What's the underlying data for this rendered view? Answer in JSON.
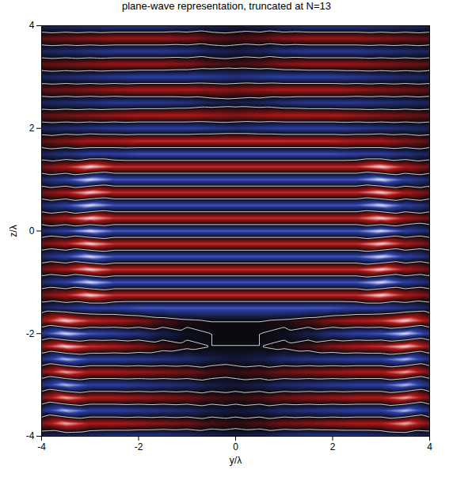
{
  "chart_data": {
    "type": "heatmap",
    "title": "plane-wave representation, truncated at N=13",
    "x_label": "y/λ",
    "y_label": "z/λ",
    "xlim": [
      -4,
      4
    ],
    "ylim": [
      -4,
      4
    ],
    "xticks": [
      -4,
      -2,
      0,
      2,
      4
    ],
    "yticks": [
      -4,
      -2,
      0,
      2,
      4
    ],
    "x": [
      -4,
      -3.5,
      -3,
      -2.5,
      -2,
      -1.5,
      -1,
      -0.5,
      0,
      0.5,
      1,
      1.5,
      2,
      2.5,
      3,
      3.5,
      4
    ],
    "y": [
      4,
      3.75,
      3.5,
      3.25,
      3,
      2.75,
      2.5,
      2.25,
      2,
      1.75,
      1.5,
      1.25,
      1,
      0.75,
      0.5,
      0.25,
      0,
      -0.25,
      -0.5,
      -0.75,
      -1,
      -1.25,
      -1.5,
      -1.75,
      -2,
      -2.25,
      -2.5,
      -2.75,
      -3,
      -3.25,
      -3.5,
      -3.75,
      -4
    ],
    "values": [
      [
        -0.4,
        -0.5,
        -0.6,
        -0.7,
        -0.7,
        -0.7,
        -0.6,
        -0.4,
        -0.3,
        -0.4,
        -0.6,
        -0.7,
        -0.7,
        -0.7,
        -0.6,
        -0.5,
        -0.4
      ],
      [
        0.4,
        0.5,
        0.6,
        0.7,
        0.7,
        0.7,
        0.6,
        0.4,
        0.3,
        0.4,
        0.6,
        0.7,
        0.7,
        0.7,
        0.6,
        0.5,
        0.4
      ],
      [
        -0.4,
        -0.5,
        -0.6,
        -0.7,
        -0.7,
        -0.7,
        -0.6,
        -0.4,
        -0.3,
        -0.4,
        -0.6,
        -0.7,
        -0.7,
        -0.7,
        -0.6,
        -0.5,
        -0.4
      ],
      [
        0.4,
        0.5,
        0.6,
        0.7,
        0.7,
        0.7,
        0.6,
        0.4,
        0.3,
        0.4,
        0.6,
        0.7,
        0.7,
        0.7,
        0.6,
        0.5,
        0.4
      ],
      [
        -0.4,
        -0.5,
        -0.6,
        -0.7,
        -0.8,
        -0.8,
        -0.8,
        -0.7,
        -0.6,
        -0.7,
        -0.8,
        -0.8,
        -0.8,
        -0.7,
        -0.6,
        -0.5,
        -0.4
      ],
      [
        0.4,
        0.5,
        0.6,
        0.7,
        0.8,
        0.8,
        0.8,
        0.7,
        0.6,
        0.7,
        0.8,
        0.8,
        0.8,
        0.7,
        0.6,
        0.5,
        0.4
      ],
      [
        -0.4,
        -0.5,
        -0.6,
        -0.7,
        -0.7,
        -0.7,
        -0.6,
        -0.4,
        -0.3,
        -0.4,
        -0.6,
        -0.7,
        -0.7,
        -0.7,
        -0.6,
        -0.5,
        -0.4
      ],
      [
        0.4,
        0.5,
        0.6,
        0.7,
        0.8,
        0.8,
        0.8,
        0.7,
        0.6,
        0.7,
        0.8,
        0.8,
        0.8,
        0.7,
        0.6,
        0.5,
        0.4
      ],
      [
        -0.4,
        -0.5,
        -0.6,
        -0.7,
        -0.8,
        -0.8,
        -0.8,
        -0.7,
        -0.6,
        -0.7,
        -0.8,
        -0.8,
        -0.8,
        -0.7,
        -0.6,
        -0.5,
        -0.4
      ],
      [
        0.4,
        0.6,
        0.8,
        0.8,
        0.9,
        0.9,
        0.9,
        0.9,
        0.9,
        0.9,
        0.9,
        0.9,
        0.9,
        0.8,
        0.8,
        0.6,
        0.4
      ],
      [
        -0.4,
        -0.6,
        -0.8,
        -0.8,
        -0.9,
        -0.9,
        -0.9,
        -0.9,
        -0.9,
        -0.9,
        -0.9,
        -0.9,
        -0.9,
        -0.8,
        -0.8,
        -0.6,
        -0.4
      ],
      [
        0.5,
        0.8,
        1.3,
        0.9,
        0.9,
        0.9,
        0.9,
        0.9,
        0.9,
        0.9,
        0.9,
        0.9,
        0.9,
        0.9,
        1.3,
        0.8,
        0.5
      ],
      [
        -0.5,
        -0.8,
        -1.3,
        -0.9,
        -0.9,
        -0.9,
        -0.9,
        -0.9,
        -0.9,
        -0.9,
        -0.9,
        -0.9,
        -0.9,
        -0.9,
        -1.3,
        -0.8,
        -0.5
      ],
      [
        0.5,
        0.8,
        1.3,
        0.9,
        0.9,
        0.9,
        0.9,
        0.9,
        0.9,
        0.9,
        0.9,
        0.9,
        0.9,
        0.9,
        1.3,
        0.8,
        0.5
      ],
      [
        -0.5,
        -0.8,
        -1.3,
        -0.9,
        -0.9,
        -0.9,
        -0.9,
        -0.9,
        -0.9,
        -0.9,
        -0.9,
        -0.9,
        -0.9,
        -0.9,
        -1.3,
        -0.8,
        -0.5
      ],
      [
        0.5,
        0.8,
        1.3,
        0.9,
        0.9,
        0.9,
        0.9,
        0.9,
        0.9,
        0.9,
        0.9,
        0.9,
        0.9,
        0.9,
        1.3,
        0.8,
        0.5
      ],
      [
        -0.5,
        -0.8,
        -1.3,
        -0.9,
        -0.9,
        -0.9,
        -0.9,
        -0.9,
        -0.9,
        -0.9,
        -0.9,
        -0.9,
        -0.9,
        -0.9,
        -1.3,
        -0.8,
        -0.5
      ],
      [
        0.5,
        0.8,
        1.3,
        0.9,
        0.9,
        0.9,
        0.9,
        0.9,
        0.9,
        0.9,
        0.9,
        0.9,
        0.9,
        0.9,
        1.3,
        0.8,
        0.5
      ],
      [
        -0.5,
        -0.8,
        -1.3,
        -0.9,
        -0.9,
        -0.9,
        -0.9,
        -0.9,
        -0.9,
        -0.9,
        -0.9,
        -0.9,
        -0.9,
        -0.9,
        -1.3,
        -0.8,
        -0.5
      ],
      [
        0.5,
        0.8,
        1.3,
        0.9,
        0.9,
        0.9,
        0.9,
        0.9,
        0.9,
        0.9,
        0.9,
        0.9,
        0.9,
        0.9,
        1.3,
        0.8,
        0.5
      ],
      [
        -0.5,
        -0.8,
        -1.3,
        -0.9,
        -0.9,
        -0.9,
        -0.9,
        -0.9,
        -0.9,
        -0.9,
        -0.9,
        -0.9,
        -0.9,
        -0.9,
        -1.3,
        -0.8,
        -0.5
      ],
      [
        0.5,
        0.8,
        1.3,
        0.9,
        0.9,
        0.9,
        0.9,
        0.9,
        0.9,
        0.9,
        0.9,
        0.9,
        0.9,
        0.9,
        1.3,
        0.8,
        0.5
      ],
      [
        -0.4,
        -0.6,
        -0.8,
        -0.8,
        -0.9,
        -0.9,
        -0.9,
        -0.9,
        -0.9,
        -0.9,
        -0.9,
        -0.9,
        -0.9,
        -0.8,
        -0.8,
        -0.6,
        -0.4
      ],
      [
        0.7,
        1.3,
        0.9,
        0.8,
        0.6,
        0.3,
        0.1,
        0,
        0,
        0,
        0.1,
        0.3,
        0.6,
        0.8,
        0.9,
        1.3,
        0.7
      ],
      [
        -0.7,
        -1.3,
        -0.9,
        -0.8,
        -0.6,
        -0.3,
        -0.1,
        0,
        0,
        0,
        -0.1,
        -0.3,
        -0.6,
        -0.8,
        -0.9,
        -1.3,
        -0.7
      ],
      [
        0.7,
        1.3,
        0.9,
        0.8,
        0.6,
        0.3,
        0.1,
        0,
        0,
        0,
        0.1,
        0.3,
        0.6,
        0.8,
        0.9,
        1.3,
        0.7
      ],
      [
        -0.6,
        -1.2,
        -0.8,
        -0.8,
        -0.7,
        -0.6,
        -0.5,
        -0.3,
        -0.2,
        -0.3,
        -0.5,
        -0.6,
        -0.7,
        -0.8,
        -0.8,
        -1.2,
        -0.6
      ],
      [
        0.6,
        1.2,
        0.8,
        0.8,
        0.7,
        0.6,
        0.5,
        0.3,
        0.2,
        0.3,
        0.5,
        0.6,
        0.7,
        0.8,
        0.8,
        1.2,
        0.6
      ],
      [
        -0.6,
        -1.2,
        -0.8,
        -0.8,
        -0.7,
        -0.6,
        -0.5,
        -0.3,
        -0.2,
        -0.3,
        -0.5,
        -0.6,
        -0.7,
        -0.8,
        -0.8,
        -1.2,
        -0.6
      ],
      [
        0.6,
        1.2,
        0.8,
        0.8,
        0.7,
        0.6,
        0.5,
        0.3,
        0.2,
        0.3,
        0.5,
        0.6,
        0.7,
        0.8,
        0.8,
        1.2,
        0.6
      ],
      [
        -0.6,
        -1.2,
        -0.8,
        -0.8,
        -0.7,
        -0.6,
        -0.5,
        -0.3,
        -0.2,
        -0.3,
        -0.5,
        -0.6,
        -0.7,
        -0.8,
        -0.8,
        -1.2,
        -0.6
      ],
      [
        0.6,
        1.2,
        0.8,
        0.8,
        0.7,
        0.6,
        0.5,
        0.3,
        0.2,
        0.3,
        0.5,
        0.6,
        0.7,
        0.8,
        0.8,
        1.2,
        0.6
      ],
      [
        -0.4,
        -0.5,
        -0.6,
        -0.7,
        -0.7,
        -0.7,
        -0.6,
        -0.4,
        -0.3,
        -0.4,
        -0.6,
        -0.7,
        -0.7,
        -0.7,
        -0.6,
        -0.5,
        -0.4
      ]
    ],
    "color_domain": [
      -1.3,
      -0.8,
      0,
      0.8,
      1.3
    ],
    "colors": [
      "#eef2ff",
      "#2d3fa8",
      "#0a0a10",
      "#b01818",
      "#ffeaea"
    ],
    "contours": {
      "levels": [
        0
      ],
      "color": "#ffffff"
    }
  }
}
